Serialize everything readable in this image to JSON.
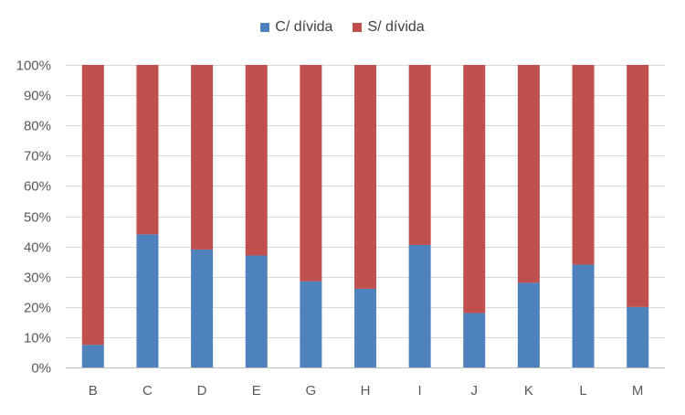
{
  "chart_data": {
    "type": "bar",
    "stacked": true,
    "percent_stacked": true,
    "categories": [
      "B",
      "C",
      "D",
      "E",
      "G",
      "H",
      "I",
      "J",
      "K",
      "L",
      "M"
    ],
    "series": [
      {
        "name": "C/ dívida",
        "color": "#4F81BD",
        "values": [
          7.5,
          44,
          39,
          37,
          28.5,
          26,
          40.5,
          18,
          28,
          34,
          20
        ]
      },
      {
        "name": "S/ dívida",
        "color": "#C0504D",
        "values": [
          92.5,
          56,
          61,
          63,
          71.5,
          74,
          59.5,
          82,
          72,
          66,
          80
        ]
      }
    ],
    "y_ticks": [
      "0%",
      "10%",
      "20%",
      "30%",
      "40%",
      "50%",
      "60%",
      "70%",
      "80%",
      "90%",
      "100%"
    ],
    "ylim": [
      0,
      100
    ],
    "grid": true,
    "legend_position": "top",
    "title": "",
    "xlabel": "",
    "ylabel": ""
  }
}
